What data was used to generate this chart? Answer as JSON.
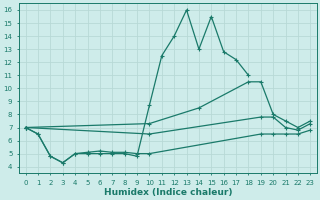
{
  "xlabel": "Humidex (Indice chaleur)",
  "xlim": [
    -0.5,
    23.5
  ],
  "ylim": [
    3.5,
    16.5
  ],
  "yticks": [
    4,
    5,
    6,
    7,
    8,
    9,
    10,
    11,
    12,
    13,
    14,
    15,
    16
  ],
  "xticks": [
    0,
    1,
    2,
    3,
    4,
    5,
    6,
    7,
    8,
    9,
    10,
    11,
    12,
    13,
    14,
    15,
    16,
    17,
    18,
    19,
    20,
    21,
    22,
    23
  ],
  "line_color": "#1a7a6a",
  "bg_color": "#ceecea",
  "grid_color": "#b8d9d6",
  "lines": [
    {
      "x": [
        0,
        1,
        2,
        3,
        4,
        5,
        6,
        7,
        8,
        9,
        10,
        11,
        12,
        13,
        14,
        15,
        16,
        17,
        18
      ],
      "y": [
        7.0,
        6.5,
        4.8,
        4.3,
        5.0,
        5.0,
        5.0,
        5.0,
        5.0,
        4.8,
        8.7,
        12.5,
        14.0,
        16.0,
        13.0,
        15.5,
        12.8,
        12.2,
        11.0
      ]
    },
    {
      "x": [
        0,
        10,
        14,
        18,
        19,
        20,
        21,
        22,
        23
      ],
      "y": [
        7.0,
        7.3,
        8.5,
        10.5,
        10.5,
        8.0,
        7.5,
        7.0,
        7.5
      ]
    },
    {
      "x": [
        0,
        10,
        19,
        20,
        21,
        22,
        23
      ],
      "y": [
        7.0,
        6.5,
        7.8,
        7.8,
        7.0,
        6.8,
        7.3
      ]
    },
    {
      "x": [
        0,
        1,
        2,
        3,
        4,
        5,
        6,
        7,
        8,
        9,
        10,
        19,
        20,
        21,
        22,
        23
      ],
      "y": [
        7.0,
        6.5,
        4.8,
        4.3,
        5.0,
        5.1,
        5.2,
        5.1,
        5.1,
        5.0,
        5.0,
        6.5,
        6.5,
        6.5,
        6.5,
        6.8
      ]
    }
  ]
}
